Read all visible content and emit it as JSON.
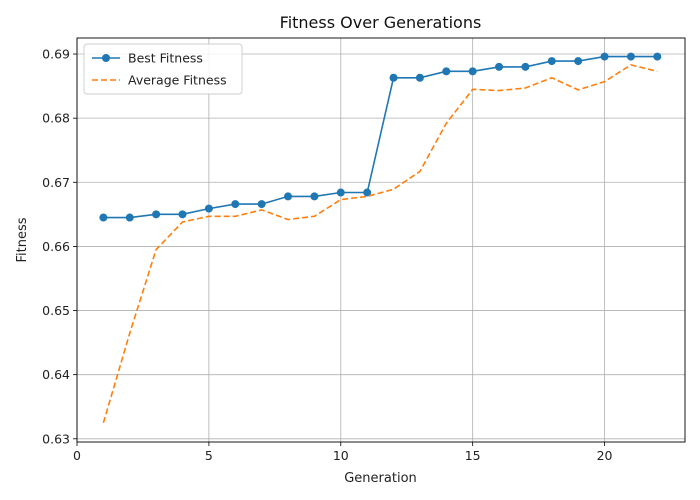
{
  "chart_data": {
    "type": "line",
    "title": "Fitness Over Generations",
    "xlabel": "Generation",
    "ylabel": "Fitness",
    "xlim": [
      0,
      23.05
    ],
    "ylim": [
      0.6295,
      0.6925
    ],
    "xticks": [
      0,
      5,
      10,
      15,
      20
    ],
    "yticks": [
      0.63,
      0.64,
      0.65,
      0.66,
      0.67,
      0.68,
      0.69
    ],
    "ytick_labels": [
      "0.63",
      "0.64",
      "0.65",
      "0.66",
      "0.67",
      "0.68",
      "0.69"
    ],
    "grid": true,
    "legend_position": "top-left",
    "x": [
      1,
      2,
      3,
      4,
      5,
      6,
      7,
      8,
      9,
      10,
      11,
      12,
      13,
      14,
      15,
      16,
      17,
      18,
      19,
      20,
      21,
      22
    ],
    "series": [
      {
        "name": "Best Fitness",
        "color": "#1f77b4",
        "style": "solid",
        "marker": "circle",
        "values": [
          0.6645,
          0.6645,
          0.665,
          0.665,
          0.6659,
          0.6666,
          0.6666,
          0.6678,
          0.6678,
          0.6684,
          0.6684,
          0.6863,
          0.6863,
          0.6873,
          0.6873,
          0.688,
          0.688,
          0.6889,
          0.6889,
          0.6896,
          0.6896,
          0.6896
        ]
      },
      {
        "name": "Average Fitness",
        "color": "#ff7f0e",
        "style": "dashed",
        "marker": "none",
        "values": [
          0.6325,
          0.6465,
          0.6595,
          0.6638,
          0.6647,
          0.6647,
          0.6657,
          0.6642,
          0.6647,
          0.6673,
          0.6678,
          0.6689,
          0.6717,
          0.6792,
          0.6845,
          0.6843,
          0.6847,
          0.6863,
          0.6844,
          0.6857,
          0.6883,
          0.6873
        ]
      }
    ]
  }
}
